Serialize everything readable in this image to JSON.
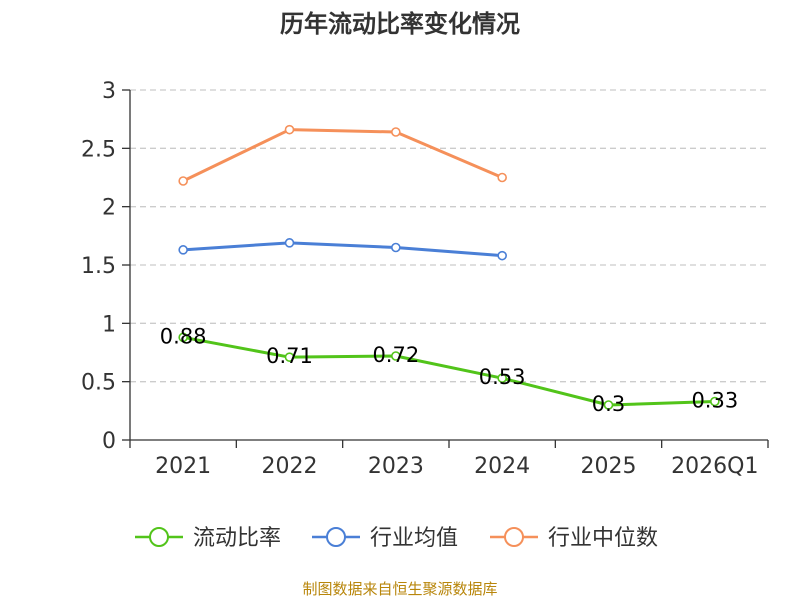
{
  "chart_data": {
    "type": "line",
    "title": "历年流动比率变化情况",
    "categories": [
      "2021",
      "2022",
      "2023",
      "2024",
      "2025",
      "2026Q1"
    ],
    "yticks": [
      "0",
      "0.5",
      "1",
      "1.5",
      "2",
      "2.5",
      "3"
    ],
    "ylim": [
      0,
      3
    ],
    "grid": true,
    "legend_position": "bottom",
    "series": [
      {
        "name": "流动比率",
        "color": "#52c41a",
        "values": [
          0.88,
          0.71,
          0.72,
          0.53,
          0.3,
          0.33
        ],
        "labels": [
          "0.88",
          "0.71",
          "0.72",
          "0.53",
          "0.3",
          "0.33"
        ]
      },
      {
        "name": "行业均值",
        "color": "#4a7fd6",
        "values": [
          1.63,
          1.69,
          1.65,
          1.58,
          null,
          null
        ]
      },
      {
        "name": "行业中位数",
        "color": "#f5905a",
        "values": [
          2.22,
          2.66,
          2.64,
          2.25,
          null,
          null
        ]
      }
    ]
  },
  "source_text": "制图数据来自恒生聚源数据库"
}
